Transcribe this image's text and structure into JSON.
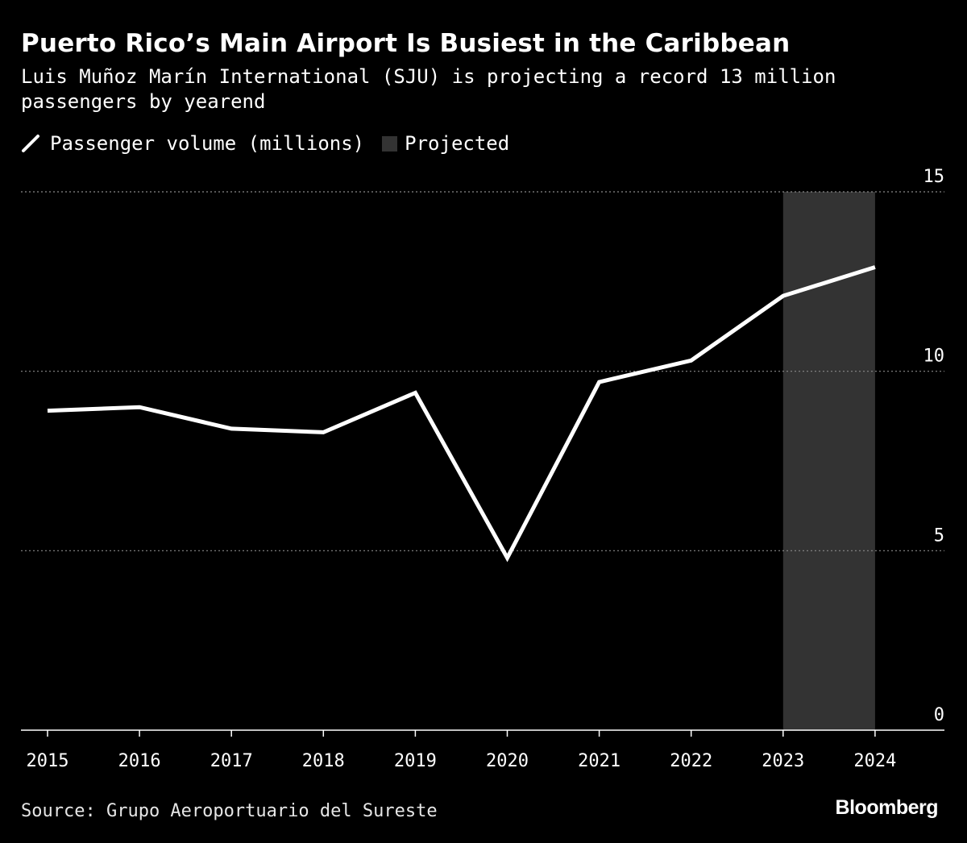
{
  "header": {
    "title": "Puerto Rico’s Main Airport Is Busiest in the Caribbean",
    "subtitle": "Luis Muñoz Marín International (SJU) is projecting a record 13 million passengers by yearend"
  },
  "legend": {
    "line_label": "Passenger volume (millions)",
    "shade_label": "Projected"
  },
  "footer": {
    "source": "Source: Grupo Aeroportuario del Sureste",
    "brand": "Bloomberg"
  },
  "colors": {
    "background": "#000000",
    "line": "#ffffff",
    "projected_shade": "#333333",
    "grid": "#8a8a8a",
    "axis": "#ffffff"
  },
  "chart_data": {
    "type": "line",
    "title": "Puerto Rico’s Main Airport Is Busiest in the Caribbean",
    "subtitle": "Luis Muñoz Marín International (SJU) is projecting a record 13 million passengers by yearend",
    "x": [
      "2015",
      "2016",
      "2017",
      "2018",
      "2019",
      "2020",
      "2021",
      "2022",
      "2023",
      "2024"
    ],
    "series": [
      {
        "name": "Passenger volume (millions)",
        "values": [
          8.9,
          9.0,
          8.4,
          8.3,
          9.4,
          4.8,
          9.7,
          10.3,
          12.1,
          12.9
        ]
      }
    ],
    "projected_range": [
      "2023",
      "2024"
    ],
    "ylim": [
      0,
      15
    ],
    "yticks": [
      0,
      5,
      10,
      15
    ],
    "y_axis_side": "right",
    "grid": "horizontal dotted",
    "legend_position": "top-left"
  }
}
